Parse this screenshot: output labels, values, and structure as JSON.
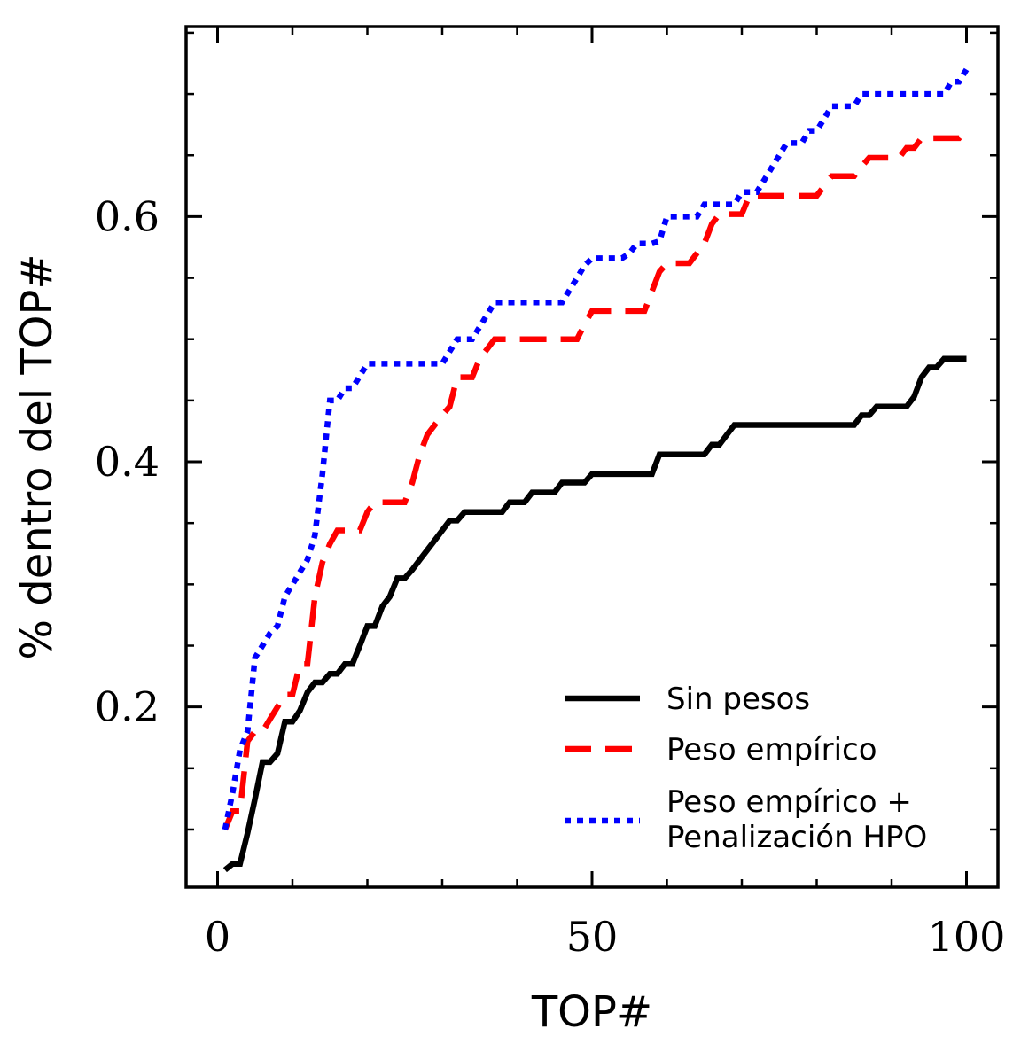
{
  "chart_data": {
    "type": "line",
    "xlabel": "TOP#",
    "ylabel": "% dentro del TOP#",
    "xlim": [
      -4.2,
      104.2
    ],
    "ylim": [
      0.053,
      0.755
    ],
    "xticks": [
      0,
      50,
      100
    ],
    "xtick_labels": [
      "0",
      "50",
      "100"
    ],
    "yticks": [
      0.2,
      0.4,
      0.6
    ],
    "ytick_labels": [
      "0.2",
      "0.4",
      "0.6"
    ],
    "grid": false,
    "legend_position": "lower-right",
    "series": [
      {
        "name": "Sin pesos",
        "color": "#000000",
        "style": "solid",
        "x": [
          1,
          2,
          3,
          4,
          5,
          6,
          7,
          8,
          9,
          10,
          11,
          12,
          13,
          14,
          15,
          16,
          17,
          18,
          19,
          20,
          21,
          22,
          23,
          24,
          25,
          26,
          27,
          28,
          29,
          30,
          31,
          32,
          33,
          34,
          35,
          36,
          37,
          38,
          39,
          40,
          41,
          42,
          43,
          44,
          45,
          46,
          47,
          48,
          49,
          50,
          51,
          52,
          53,
          54,
          55,
          56,
          57,
          58,
          59,
          60,
          61,
          62,
          63,
          64,
          65,
          66,
          67,
          68,
          69,
          70,
          71,
          72,
          73,
          74,
          75,
          76,
          77,
          78,
          79,
          80,
          81,
          82,
          83,
          84,
          85,
          86,
          87,
          88,
          89,
          90,
          91,
          92,
          93,
          94,
          95,
          96,
          97,
          98,
          99,
          100
        ],
        "y": [
          0.067,
          0.072,
          0.072,
          0.097,
          0.125,
          0.155,
          0.155,
          0.162,
          0.188,
          0.188,
          0.197,
          0.212,
          0.22,
          0.22,
          0.227,
          0.227,
          0.235,
          0.235,
          0.25,
          0.266,
          0.266,
          0.282,
          0.29,
          0.305,
          0.305,
          0.312,
          0.32,
          0.328,
          0.336,
          0.344,
          0.352,
          0.352,
          0.359,
          0.359,
          0.359,
          0.359,
          0.359,
          0.359,
          0.367,
          0.367,
          0.367,
          0.375,
          0.375,
          0.375,
          0.375,
          0.383,
          0.383,
          0.383,
          0.383,
          0.39,
          0.39,
          0.39,
          0.39,
          0.39,
          0.39,
          0.39,
          0.39,
          0.39,
          0.406,
          0.406,
          0.406,
          0.406,
          0.406,
          0.406,
          0.406,
          0.414,
          0.414,
          0.422,
          0.43,
          0.43,
          0.43,
          0.43,
          0.43,
          0.43,
          0.43,
          0.43,
          0.43,
          0.43,
          0.43,
          0.43,
          0.43,
          0.43,
          0.43,
          0.43,
          0.43,
          0.438,
          0.438,
          0.445,
          0.445,
          0.445,
          0.445,
          0.445,
          0.453,
          0.469,
          0.477,
          0.477,
          0.484,
          0.484,
          0.484,
          0.484
        ]
      },
      {
        "name": "Peso empírico",
        "color": "#ff0000",
        "style": "dashed",
        "x": [
          1,
          2,
          3,
          4,
          5,
          6,
          7,
          8,
          9,
          10,
          11,
          12,
          13,
          14,
          15,
          16,
          17,
          18,
          19,
          20,
          21,
          22,
          23,
          24,
          25,
          26,
          27,
          28,
          29,
          30,
          31,
          32,
          33,
          34,
          35,
          36,
          37,
          38,
          39,
          40,
          41,
          42,
          43,
          44,
          45,
          46,
          47,
          48,
          49,
          50,
          51,
          52,
          53,
          54,
          55,
          56,
          57,
          58,
          59,
          60,
          61,
          62,
          63,
          64,
          65,
          66,
          67,
          68,
          69,
          70,
          71,
          72,
          73,
          74,
          75,
          76,
          77,
          78,
          79,
          80,
          81,
          82,
          83,
          84,
          85,
          86,
          87,
          88,
          89,
          90,
          91,
          92,
          93,
          94,
          95,
          96,
          97,
          98,
          99,
          100
        ],
        "y": [
          0.1,
          0.115,
          0.115,
          0.172,
          0.18,
          0.18,
          0.19,
          0.2,
          0.21,
          0.21,
          0.235,
          0.235,
          0.29,
          0.318,
          0.333,
          0.344,
          0.344,
          0.344,
          0.344,
          0.359,
          0.367,
          0.367,
          0.367,
          0.367,
          0.367,
          0.383,
          0.406,
          0.422,
          0.43,
          0.438,
          0.445,
          0.469,
          0.469,
          0.469,
          0.484,
          0.492,
          0.5,
          0.5,
          0.5,
          0.5,
          0.5,
          0.5,
          0.5,
          0.5,
          0.5,
          0.5,
          0.5,
          0.5,
          0.512,
          0.523,
          0.523,
          0.523,
          0.523,
          0.523,
          0.523,
          0.523,
          0.523,
          0.539,
          0.555,
          0.562,
          0.562,
          0.562,
          0.562,
          0.57,
          0.578,
          0.594,
          0.602,
          0.602,
          0.602,
          0.602,
          0.617,
          0.617,
          0.617,
          0.617,
          0.617,
          0.617,
          0.617,
          0.617,
          0.617,
          0.617,
          0.625,
          0.633,
          0.633,
          0.633,
          0.633,
          0.641,
          0.648,
          0.648,
          0.648,
          0.648,
          0.648,
          0.656,
          0.656,
          0.664,
          0.664,
          0.664,
          0.664,
          0.664,
          0.664,
          0.672
        ]
      },
      {
        "name": "Peso empírico + Penalización HPO",
        "legend_lines": [
          "Peso empírico +",
          "Penalización HPO"
        ],
        "color": "#0000ff",
        "style": "dotted",
        "x": [
          1,
          2,
          3,
          4,
          5,
          6,
          7,
          8,
          9,
          10,
          11,
          12,
          13,
          14,
          15,
          16,
          17,
          18,
          19,
          20,
          21,
          22,
          23,
          24,
          25,
          26,
          27,
          28,
          29,
          30,
          31,
          32,
          33,
          34,
          35,
          36,
          37,
          38,
          39,
          40,
          41,
          42,
          43,
          44,
          45,
          46,
          47,
          48,
          49,
          50,
          51,
          52,
          53,
          54,
          55,
          56,
          57,
          58,
          59,
          60,
          61,
          62,
          63,
          64,
          65,
          66,
          67,
          68,
          69,
          70,
          71,
          72,
          73,
          74,
          75,
          76,
          77,
          78,
          79,
          80,
          81,
          82,
          83,
          84,
          85,
          86,
          87,
          88,
          89,
          90,
          91,
          92,
          93,
          94,
          95,
          96,
          97,
          98,
          99,
          100
        ],
        "y": [
          0.1,
          0.13,
          0.165,
          0.18,
          0.24,
          0.25,
          0.26,
          0.266,
          0.29,
          0.3,
          0.31,
          0.32,
          0.34,
          0.39,
          0.45,
          0.45,
          0.46,
          0.46,
          0.47,
          0.48,
          0.48,
          0.48,
          0.48,
          0.48,
          0.48,
          0.48,
          0.48,
          0.48,
          0.48,
          0.48,
          0.49,
          0.5,
          0.5,
          0.5,
          0.51,
          0.52,
          0.53,
          0.53,
          0.53,
          0.53,
          0.53,
          0.53,
          0.53,
          0.53,
          0.53,
          0.53,
          0.54,
          0.55,
          0.56,
          0.566,
          0.566,
          0.566,
          0.566,
          0.566,
          0.57,
          0.578,
          0.578,
          0.578,
          0.58,
          0.6,
          0.6,
          0.6,
          0.6,
          0.6,
          0.61,
          0.61,
          0.61,
          0.61,
          0.61,
          0.62,
          0.62,
          0.62,
          0.63,
          0.64,
          0.65,
          0.66,
          0.66,
          0.66,
          0.67,
          0.67,
          0.68,
          0.69,
          0.69,
          0.69,
          0.69,
          0.7,
          0.7,
          0.7,
          0.7,
          0.7,
          0.7,
          0.7,
          0.7,
          0.7,
          0.7,
          0.7,
          0.7,
          0.71,
          0.71,
          0.72
        ]
      }
    ]
  }
}
